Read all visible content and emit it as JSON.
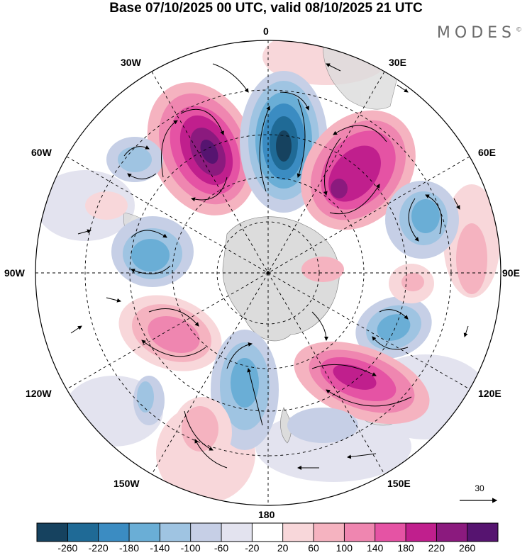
{
  "title": "Base 07/10/2025 00 UTC, valid 08/10/2025 21 UTC",
  "brand": "MODES",
  "brand_mark": "©",
  "lon_labels": {
    "n": "0",
    "ne30": "30E",
    "nw30": "30W",
    "e60": "60E",
    "w60": "60W",
    "e90": "90E",
    "w90": "90W",
    "e120": "120E",
    "w120": "120W",
    "e150": "150E",
    "w150": "150W",
    "s": "180"
  },
  "vector_reference": "30",
  "colorbar": {
    "labels": [
      "-260",
      "-220",
      "-180",
      "-140",
      "-100",
      "-60",
      "-20",
      "20",
      "60",
      "100",
      "140",
      "180",
      "220",
      "260"
    ],
    "colors": [
      "#16425f",
      "#1f6a96",
      "#3b8cc2",
      "#6aaed6",
      "#9fc4e2",
      "#c6cfe6",
      "#e3e3ef",
      "#ffffff",
      "#f8d7da",
      "#f5b3c0",
      "#ef86b0",
      "#e553a4",
      "#c01f8d",
      "#8b1a7e",
      "#561470"
    ]
  },
  "anomalies": [
    {
      "id": "a1",
      "value": 260
    },
    {
      "id": "a2",
      "value": -260
    },
    {
      "id": "a3",
      "value": 220
    },
    {
      "id": "a4",
      "value": -140
    },
    {
      "id": "a5",
      "value": -140
    },
    {
      "id": "a6",
      "value": -140
    },
    {
      "id": "a7",
      "value": -100
    },
    {
      "id": "a8",
      "value": 180
    },
    {
      "id": "a9",
      "value": 220
    },
    {
      "id": "a10",
      "value": -140
    },
    {
      "id": "a11",
      "value": 100
    },
    {
      "id": "a12",
      "value": 100
    }
  ]
}
